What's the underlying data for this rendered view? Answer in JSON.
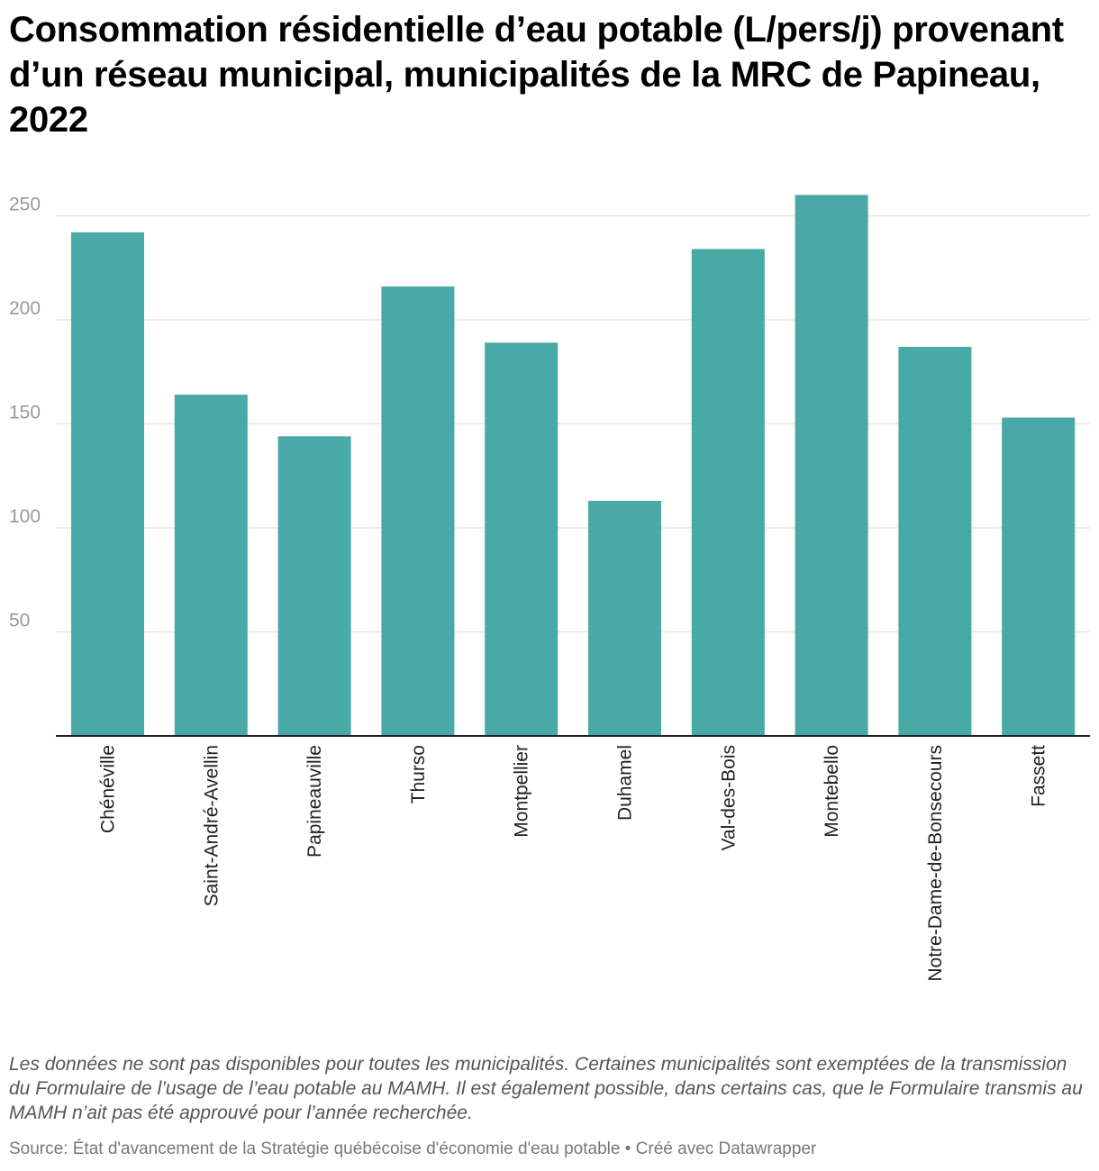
{
  "header": {
    "title": "Consommation résidentielle d’eau potable (L/pers/j) provenant d’un réseau municipal, municipalités de la MRC de Papineau, 2022"
  },
  "chart_data": {
    "type": "bar",
    "title": "Consommation résidentielle d’eau potable (L/pers/j) provenant d’un réseau municipal, municipalités de la MRC de Papineau, 2022",
    "xlabel": "",
    "ylabel": "",
    "categories": [
      "Chénéville",
      "Saint-André-Avellin",
      "Papineauville",
      "Thurso",
      "Montpellier",
      "Duhamel",
      "Val-des-Bois",
      "Montebello",
      "Notre-Dame-de-Bonsecours",
      "Fassett"
    ],
    "values": [
      242,
      164,
      144,
      216,
      189,
      113,
      234,
      260,
      187,
      153
    ],
    "ylim": [
      0,
      260
    ],
    "yticks": [
      50,
      100,
      150,
      200,
      250
    ],
    "grid": true,
    "colors": {
      "bar": "#48a9a6",
      "grid": "#e5e5e5",
      "axis": "#222222"
    }
  },
  "footer": {
    "notes": "Les données ne sont pas disponibles pour toutes les municipalités. Certaines municipalités sont exemptées de la transmission du Formulaire de l’usage de l’eau potable au MAMH. Il est également possible, dans certains cas, que le Formulaire transmis au MAMH n’ait pas été approuvé pour l’année recherchée.",
    "source": "Source: État d'avancement de la Stratégie québécoise d'économie d'eau potable • Créé avec Datawrapper"
  }
}
